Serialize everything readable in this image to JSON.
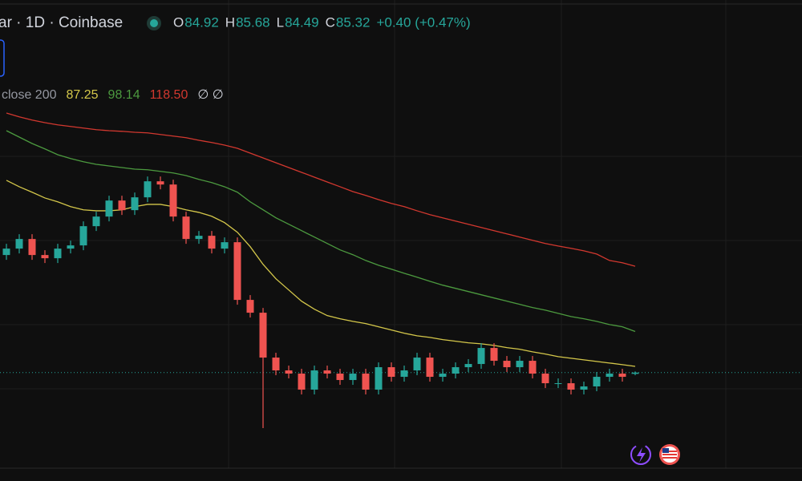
{
  "header": {
    "symbol": "ar · 1D · Coinbase",
    "ohlc": [
      {
        "label": "O",
        "value": "84.92"
      },
      {
        "label": "H",
        "value": "85.68"
      },
      {
        "label": "L",
        "value": "84.49"
      },
      {
        "label": "C",
        "value": "85.32"
      }
    ],
    "change": "+0.40 (+0.47%)"
  },
  "indicator": {
    "label": "close 200",
    "values": [
      "87.25",
      "98.14",
      "118.50"
    ],
    "extra": "∅ ∅"
  },
  "chart_data": {
    "type": "candlestick",
    "up_color": "#26a69a",
    "down_color": "#ef5350",
    "last_price_line": true,
    "open": [
      122,
      124,
      127,
      122,
      121,
      124,
      125,
      131,
      134,
      139,
      136,
      140,
      145,
      144,
      134,
      127,
      128,
      124,
      126,
      108,
      104,
      90,
      86,
      85,
      80,
      86,
      85,
      83,
      85,
      80,
      87,
      84,
      86,
      90,
      84,
      85,
      87,
      88,
      93,
      89,
      87,
      89,
      85,
      82,
      82,
      80,
      81,
      84,
      85,
      84.92
    ],
    "high": [
      125.5,
      128.5,
      128.5,
      123.5,
      125.5,
      126.5,
      132.5,
      135.5,
      140.5,
      140.5,
      141.5,
      146.5,
      146.5,
      145.5,
      135.5,
      129.5,
      129.5,
      127.5,
      127.5,
      109.5,
      105.5,
      91.5,
      87.5,
      86.5,
      87.5,
      87.5,
      86.5,
      86.5,
      86.5,
      88.5,
      88.5,
      87.5,
      91.5,
      91.5,
      86.5,
      88.5,
      89.5,
      94.5,
      94.5,
      90.5,
      90.5,
      90.5,
      86.5,
      83.5,
      83.5,
      82.5,
      85.5,
      86.5,
      86.5,
      85.68
    ],
    "low": [
      120.5,
      122.5,
      120.5,
      119.5,
      119.5,
      122.5,
      123.5,
      129.5,
      132.5,
      134.5,
      134.5,
      138.5,
      142.5,
      132.5,
      125.5,
      125.5,
      122.5,
      122.5,
      106.5,
      102.5,
      68,
      84.5,
      83.5,
      78.5,
      78.5,
      83.5,
      81.5,
      81.5,
      78.5,
      78.5,
      82.5,
      82.5,
      84.5,
      82.5,
      82.5,
      83.5,
      85.5,
      86.5,
      87.5,
      85.5,
      85.5,
      83.5,
      80.5,
      80.5,
      78.5,
      78.5,
      79.5,
      82.5,
      82.5,
      84.49
    ],
    "close": [
      124,
      127,
      122,
      121,
      124,
      125,
      131,
      134,
      139,
      136,
      140,
      145,
      144,
      134,
      127,
      128,
      124,
      126,
      108,
      104,
      90,
      86,
      85,
      80,
      86,
      85,
      83,
      85,
      80,
      87,
      84,
      86,
      90,
      84,
      85,
      87,
      88,
      93,
      89,
      87,
      89,
      85,
      82,
      82,
      80,
      81,
      84,
      85,
      84,
      85.32
    ],
    "series": [
      {
        "color": "#d4c74a",
        "values": [
          145.3,
          143.3,
          141.6,
          139.8,
          138.6,
          137.1,
          136.1,
          135.8,
          135.8,
          136.1,
          137.1,
          137.8,
          137.8,
          137.1,
          136.1,
          135.3,
          134.1,
          132.1,
          129.1,
          124.6,
          119.1,
          114.6,
          111.1,
          107.6,
          105.1,
          103.1,
          102.1,
          101.3,
          100.6,
          99.6,
          98.6,
          97.6,
          96.8,
          96.3,
          95.6,
          95.1,
          94.6,
          94.3,
          93.8,
          93.1,
          92.6,
          91.8,
          91.1,
          90.3,
          89.8,
          89.3,
          88.8,
          88.3,
          87.8,
          87.25
        ]
      },
      {
        "color": "#4c9a3f",
        "values": [
          160.8,
          158.8,
          156.8,
          155.1,
          153.3,
          152.1,
          151.1,
          150.3,
          149.8,
          149.3,
          148.8,
          148.6,
          148.1,
          147.6,
          146.8,
          145.6,
          144.6,
          143.3,
          141.6,
          138.6,
          136.1,
          133.6,
          131.6,
          129.6,
          127.6,
          125.6,
          123.6,
          122.1,
          120.3,
          118.8,
          117.6,
          116.3,
          115.1,
          113.8,
          112.6,
          111.6,
          110.6,
          109.6,
          108.6,
          107.6,
          106.6,
          105.6,
          104.8,
          103.8,
          102.8,
          102.1,
          101.3,
          100.3,
          99.6,
          98.14
        ]
      },
      {
        "color": "#d2382f",
        "values": [
          166.3,
          165.1,
          164.1,
          163.3,
          162.6,
          162.1,
          161.6,
          161.1,
          160.8,
          160.6,
          160.3,
          160.1,
          159.6,
          159.1,
          158.6,
          157.8,
          157.1,
          156.3,
          155.3,
          153.8,
          152.3,
          150.8,
          149.3,
          147.8,
          146.3,
          144.8,
          143.3,
          141.8,
          140.6,
          139.3,
          138.1,
          137.1,
          135.8,
          134.6,
          133.6,
          132.6,
          131.6,
          130.6,
          129.6,
          128.6,
          127.6,
          126.6,
          125.6,
          124.8,
          124.1,
          123.3,
          122.3,
          120.3,
          119.6,
          118.5
        ]
      }
    ]
  }
}
